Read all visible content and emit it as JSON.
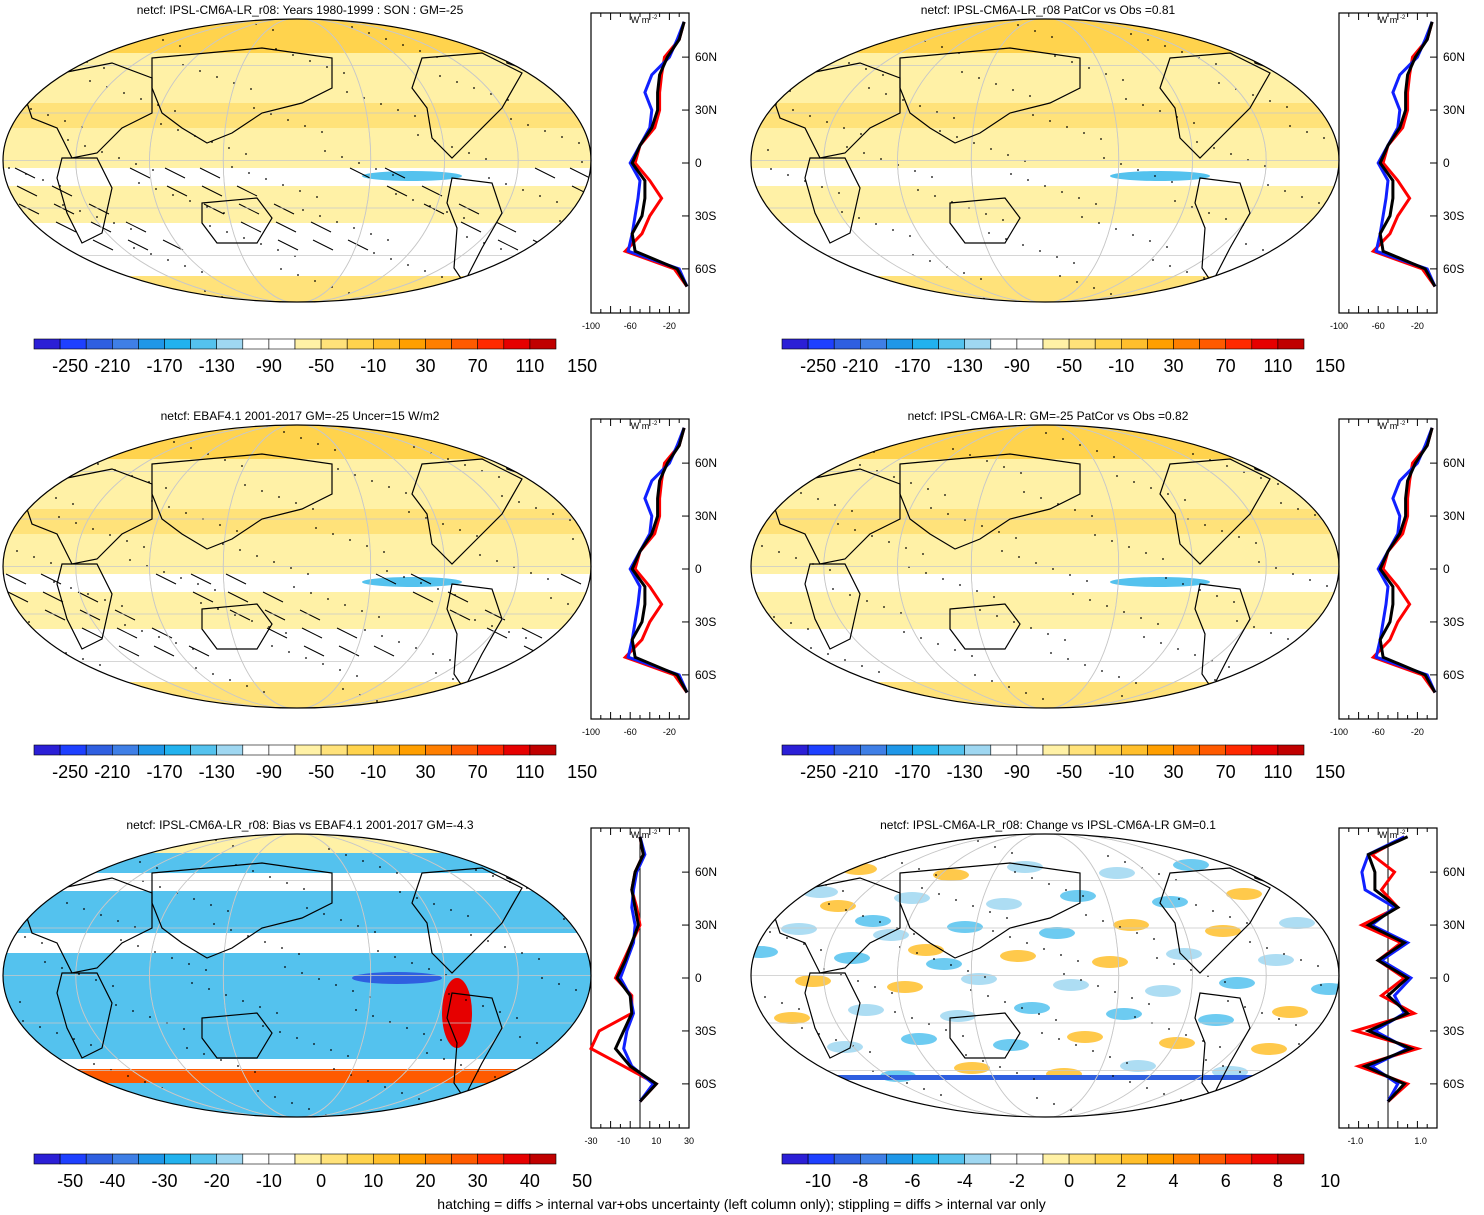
{
  "footer": "hatching = diffs > internal var+obs uncertainty (left column only); stippling = diffs > internal var only",
  "colors": {
    "diverging": [
      "#2b1fd6",
      "#1e40ff",
      "#2f5fe0",
      "#3f7fe6",
      "#1f97e8",
      "#22b2ee",
      "#54c2ee",
      "#9fd7f1",
      "#ffffff",
      "#ffffff",
      "#fff1a6",
      "#ffe27a",
      "#ffd34d",
      "#ffbf2c",
      "#ff9f00",
      "#ff7f00",
      "#ff5a00",
      "#ff2a00",
      "#e60000",
      "#c00000"
    ],
    "land_outline": "#000000",
    "grid": "#c8c8c8",
    "obs_line": "#000000",
    "model_line": "#1020ff",
    "model2_line": "#ff0000"
  },
  "panels": [
    {
      "title": "netcf: IPSL-CM6A-LR_r08: Years 1980-1999 : SON : GM=-25",
      "cbar_labels": [
        "-250",
        "-210",
        "-170",
        "-130",
        "-90",
        "-50",
        "-10",
        "30",
        "70",
        "110",
        "150"
      ],
      "profile_unit": "W m",
      "profile_unit_sup": "-2",
      "profile_xticks": [
        "-100",
        "-60",
        "-20"
      ],
      "profile_yticks": [
        "60N",
        "30N",
        "0",
        "30S",
        "60S"
      ],
      "map_style": "mean_hatched"
    },
    {
      "title": "netcf: IPSL-CM6A-LR_r08 PatCor vs Obs =0.81",
      "cbar_labels": [
        "-250",
        "-210",
        "-170",
        "-130",
        "-90",
        "-50",
        "-10",
        "30",
        "70",
        "110",
        "150"
      ],
      "profile_unit": "W m",
      "profile_unit_sup": "-2",
      "profile_xticks": [
        "-100",
        "-60",
        "-20"
      ],
      "profile_yticks": [
        "60N",
        "30N",
        "0",
        "30S",
        "60S"
      ],
      "map_style": "mean"
    },
    {
      "title": "netcf: EBAF4.1 2001-2017 GM=-25 Uncer=15 W/m2",
      "cbar_labels": [
        "-250",
        "-210",
        "-170",
        "-130",
        "-90",
        "-50",
        "-10",
        "30",
        "70",
        "110",
        "150"
      ],
      "profile_unit": "W m",
      "profile_unit_sup": "-2",
      "profile_xticks": [
        "-100",
        "-60",
        "-20"
      ],
      "profile_yticks": [
        "60N",
        "30N",
        "0",
        "30S",
        "60S"
      ],
      "map_style": "mean_hatched"
    },
    {
      "title": "netcf: IPSL-CM6A-LR: GM=-25 PatCor vs Obs =0.82",
      "cbar_labels": [
        "-250",
        "-210",
        "-170",
        "-130",
        "-90",
        "-50",
        "-10",
        "30",
        "70",
        "110",
        "150"
      ],
      "profile_unit": "W m",
      "profile_unit_sup": "-2",
      "profile_xticks": [
        "-100",
        "-60",
        "-20"
      ],
      "profile_yticks": [
        "60N",
        "30N",
        "0",
        "30S",
        "60S"
      ],
      "map_style": "mean"
    },
    {
      "title": "netcf: IPSL-CM6A-LR_r08: Bias vs EBAF4.1 2001-2017  GM=-4.3",
      "cbar_labels": [
        "-50",
        "-40",
        "-30",
        "-20",
        "-10",
        "0",
        "10",
        "20",
        "30",
        "40",
        "50"
      ],
      "profile_unit": "W m",
      "profile_unit_sup": "-2",
      "profile_xticks": [
        "-30",
        "-10",
        "10",
        "30"
      ],
      "profile_yticks": [
        "60N",
        "30N",
        "0",
        "30S",
        "60S"
      ],
      "map_style": "bias"
    },
    {
      "title": "netcf: IPSL-CM6A-LR_r08: Change vs IPSL-CM6A-LR GM=0.1",
      "cbar_labels": [
        "-10",
        "-8",
        "-6",
        "-4",
        "-2",
        "0",
        "2",
        "4",
        "6",
        "8",
        "10"
      ],
      "profile_unit": "W m",
      "profile_unit_sup": "-2",
      "profile_xticks": [
        "-1.0",
        "1.0"
      ],
      "profile_yticks": [
        "60N",
        "30N",
        "0",
        "30S",
        "60S"
      ],
      "map_style": "change"
    }
  ],
  "chart_data": [
    {
      "type": "heatmap",
      "title": "netcf: IPSL-CM6A-LR_r08: Years 1980-1999 : SON : GM=-25",
      "colorbar": [
        -250,
        -210,
        -170,
        -130,
        -90,
        -50,
        -10,
        30,
        70,
        110,
        150
      ],
      "zonal_mean": {
        "lat": [
          80,
          70,
          60,
          50,
          40,
          30,
          20,
          10,
          0,
          -10,
          -20,
          -30,
          -40,
          -50,
          -60,
          -70
        ],
        "series": [
          {
            "color": "red",
            "values": [
              -5,
              -10,
              -25,
              -28,
              -30,
              -30,
              -35,
              -50,
              -55,
              -40,
              -28,
              -40,
              -48,
              -65,
              -15,
              -2
            ]
          },
          {
            "color": "blue",
            "values": [
              -5,
              -12,
              -20,
              -38,
              -45,
              -38,
              -40,
              -50,
              -60,
              -50,
              -52,
              -55,
              -58,
              -62,
              -10,
              -2
            ]
          },
          {
            "color": "black",
            "values": [
              -5,
              -10,
              -22,
              -30,
              -32,
              -32,
              -38,
              -50,
              -58,
              -45,
              -45,
              -48,
              -58,
              -55,
              -12,
              -2
            ]
          }
        ]
      }
    },
    {
      "type": "heatmap",
      "title": "netcf: IPSL-CM6A-LR_r08 PatCor vs Obs =0.81",
      "colorbar": [
        -250,
        -210,
        -170,
        -130,
        -90,
        -50,
        -10,
        30,
        70,
        110,
        150
      ],
      "zonal_mean": {
        "lat": [
          80,
          70,
          60,
          50,
          40,
          30,
          20,
          10,
          0,
          -10,
          -20,
          -30,
          -40,
          -50,
          -60,
          -70
        ],
        "series": [
          {
            "color": "red",
            "values": [
              -5,
              -10,
              -25,
              -28,
              -30,
              -30,
              -35,
              -50,
              -55,
              -40,
              -28,
              -40,
              -48,
              -65,
              -15,
              -2
            ]
          },
          {
            "color": "blue",
            "values": [
              -5,
              -12,
              -20,
              -38,
              -45,
              -38,
              -40,
              -50,
              -60,
              -50,
              -52,
              -55,
              -58,
              -62,
              -10,
              -2
            ]
          },
          {
            "color": "black",
            "values": [
              -5,
              -10,
              -22,
              -30,
              -32,
              -32,
              -38,
              -50,
              -58,
              -45,
              -45,
              -48,
              -58,
              -55,
              -12,
              -2
            ]
          }
        ]
      }
    },
    {
      "type": "heatmap",
      "title": "netcf: EBAF4.1 2001-2017 GM=-25 Uncer=15 W/m2",
      "colorbar": [
        -250,
        -210,
        -170,
        -130,
        -90,
        -50,
        -10,
        30,
        70,
        110,
        150
      ],
      "zonal_mean": {
        "lat": [
          80,
          70,
          60,
          50,
          40,
          30,
          20,
          10,
          0,
          -10,
          -20,
          -30,
          -40,
          -50,
          -60,
          -70
        ],
        "series": [
          {
            "color": "red",
            "values": [
              -5,
              -10,
              -25,
              -28,
              -30,
              -30,
              -35,
              -50,
              -55,
              -40,
              -28,
              -40,
              -48,
              -65,
              -15,
              -2
            ]
          },
          {
            "color": "blue",
            "values": [
              -5,
              -12,
              -20,
              -38,
              -45,
              -38,
              -40,
              -50,
              -60,
              -50,
              -52,
              -55,
              -58,
              -62,
              -10,
              -2
            ]
          },
          {
            "color": "black",
            "values": [
              -5,
              -10,
              -22,
              -30,
              -32,
              -32,
              -38,
              -50,
              -58,
              -45,
              -45,
              -48,
              -58,
              -55,
              -12,
              -2
            ]
          }
        ]
      }
    },
    {
      "type": "heatmap",
      "title": "netcf: IPSL-CM6A-LR: GM=-25 PatCor vs Obs =0.82",
      "colorbar": [
        -250,
        -210,
        -170,
        -130,
        -90,
        -50,
        -10,
        30,
        70,
        110,
        150
      ],
      "zonal_mean": {
        "lat": [
          80,
          70,
          60,
          50,
          40,
          30,
          20,
          10,
          0,
          -10,
          -20,
          -30,
          -40,
          -50,
          -60,
          -70
        ],
        "series": [
          {
            "color": "red",
            "values": [
              -5,
              -10,
              -25,
              -28,
              -30,
              -30,
              -35,
              -50,
              -55,
              -40,
              -28,
              -40,
              -48,
              -65,
              -15,
              -2
            ]
          },
          {
            "color": "blue",
            "values": [
              -5,
              -12,
              -20,
              -38,
              -45,
              -38,
              -40,
              -50,
              -60,
              -50,
              -52,
              -55,
              -58,
              -62,
              -10,
              -2
            ]
          },
          {
            "color": "black",
            "values": [
              -5,
              -10,
              -22,
              -30,
              -32,
              -32,
              -38,
              -50,
              -58,
              -45,
              -45,
              -48,
              -58,
              -55,
              -12,
              -2
            ]
          }
        ]
      }
    },
    {
      "type": "heatmap",
      "title": "netcf: IPSL-CM6A-LR_r08: Bias vs EBAF4.1 2001-2017  GM=-4.3",
      "colorbar": [
        -50,
        -40,
        -30,
        -20,
        -10,
        0,
        10,
        20,
        30,
        40,
        50
      ],
      "zonal_mean": {
        "lat": [
          80,
          70,
          60,
          50,
          40,
          30,
          20,
          10,
          0,
          -10,
          -20,
          -30,
          -40,
          -50,
          -60,
          -70
        ],
        "series": [
          {
            "color": "red",
            "values": [
              0,
              2,
              -3,
              -5,
              -2,
              0,
              -5,
              -10,
              -15,
              -5,
              -5,
              -25,
              -30,
              -10,
              10,
              0
            ]
          },
          {
            "color": "blue",
            "values": [
              0,
              3,
              -2,
              -4,
              -5,
              -3,
              -4,
              -8,
              -12,
              -6,
              -4,
              -8,
              -10,
              -5,
              8,
              0
            ]
          },
          {
            "color": "black",
            "values": [
              0,
              2,
              -3,
              -5,
              -3,
              -1,
              -5,
              -9,
              -14,
              -6,
              -5,
              -10,
              -15,
              -6,
              10,
              0
            ]
          }
        ]
      }
    },
    {
      "type": "heatmap",
      "title": "netcf: IPSL-CM6A-LR_r08: Change vs IPSL-CM6A-LR GM=0.1",
      "colorbar": [
        -10,
        -8,
        -6,
        -4,
        -2,
        0,
        2,
        4,
        6,
        8,
        10
      ],
      "zonal_mean": {
        "lat": [
          80,
          70,
          60,
          50,
          40,
          30,
          20,
          10,
          0,
          -10,
          -20,
          -30,
          -40,
          -50,
          -60,
          -70
        ],
        "series": [
          {
            "color": "red",
            "values": [
              0.5,
              -0.5,
              0.2,
              -0.2,
              0.3,
              -0.8,
              0.4,
              -0.3,
              0.5,
              -0.2,
              0.8,
              -1.0,
              0.9,
              -0.9,
              0.6,
              0
            ]
          },
          {
            "color": "blue",
            "values": [
              0.5,
              -0.6,
              -0.8,
              -0.7,
              0.2,
              -0.5,
              0.6,
              -0.2,
              0.7,
              0.2,
              0.5,
              -0.4,
              0.6,
              -0.5,
              0.3,
              0
            ]
          },
          {
            "color": "black",
            "values": [
              0.6,
              -0.6,
              -0.4,
              -0.4,
              0.3,
              -0.6,
              0.5,
              -0.3,
              0.6,
              0.0,
              0.6,
              -0.6,
              0.7,
              -0.7,
              0.5,
              0
            ]
          }
        ]
      }
    }
  ]
}
